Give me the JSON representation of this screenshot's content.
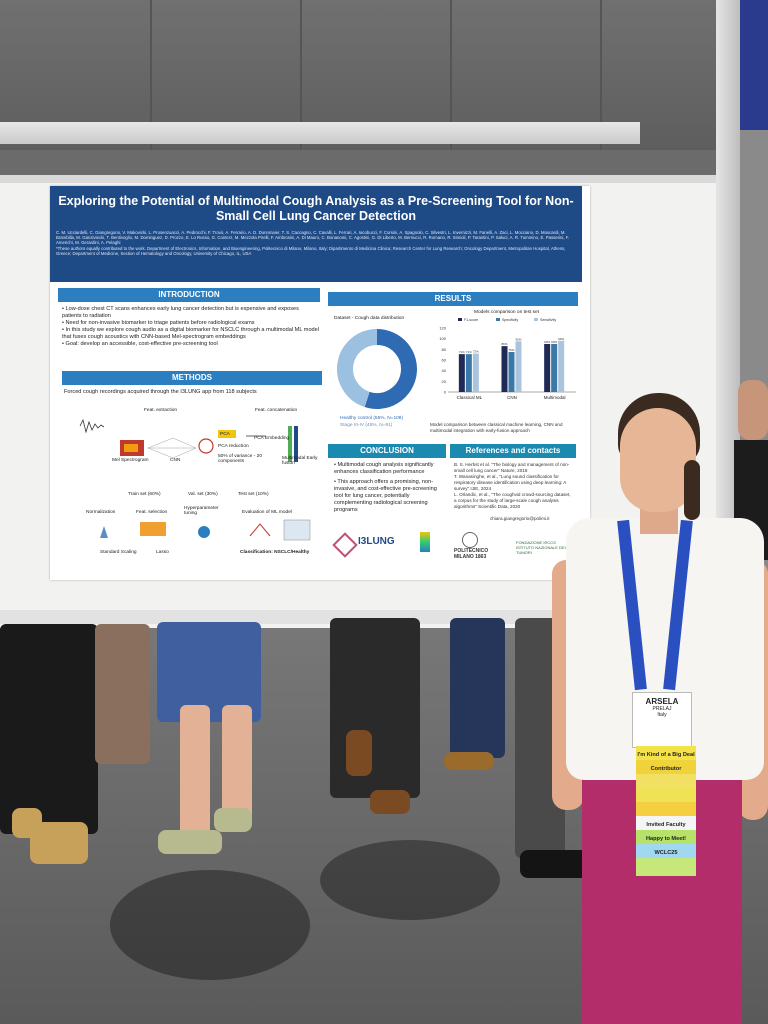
{
  "poster": {
    "title": "Exploring the Potential of Multimodal Cough Analysis as a Pre-Screening Tool for Non-Small Cell Lung Cancer Detection",
    "authors": "C. M. Ucciardelli, C. Giangregorio, V. Makovicki, L. Prosenzuacci, A. Pedrocchi, F. Trovò, A. Ferrario, A. D. Dunnmaier, T. S. Caccagno, C. Cavalli, L. Ferrari, A. Iacobucci, F. Corsini, A. Spagnolo, C. Silvestri, L. Invernizzi, M. Fanelli, A. Zaci, L. Mocciano, D. Moscardi, M. Brambilla, M. Ganziviecki, T. Bentivoglio, M. Dominguez, D. Prozzo, E. Lo Russo, G. Conterz, M. Mezzola Pirelli, F. Ambrosini, A. Di Mauro, C. Bonanomi, C. Agostini, G. Di Liberto, M. Bernucci, R. Romano, R. Simioli, P. Tarantini, P. Saluci, A. R. Tummino, E. Passerini, F. Americhi, M. Gerardini, A. Pelaghi",
    "notes": "*These authors equally contributed to the work. Department of Electronics, Information, and Bioengineering, Politecnico di Milano, Milano, Italy; Dipartimento di Medicina Clinica; Research Center for Lung Research; Oncology Department, Metropolitan Hospital, Athens, Greece; Department of Medicine, Section of Hematology and Oncology, University of Chicago, IL, USA",
    "intro": {
      "heading": "INTRODUCTION",
      "bullets": [
        "Low-dose chest CT scans enhances early lung cancer detection but is expensive and exposes patients to radiation",
        "Need for non-invasive biomarker to triage patients before radiological exams",
        "In this study we explore cough audio as a digital biomarker for NSCLC through a multimodal ML model that fuses cough acoustics with CNN-based Mel-spectrogram embeddings",
        "Goal: develop an accessible, cost-effective pre-screening tool"
      ]
    },
    "methods": {
      "heading": "METHODS",
      "lead": "Forced cough recordings acquired through the I3LUNG app from 118 subjects",
      "feat_extraction": "Feat. extraction",
      "feat_concat": "Feat. concatenation",
      "mel": "Mel Spectrogram",
      "cnn": "CNN",
      "pca": "PCA",
      "pca_reduction": "PCA reduction",
      "variance": "50% of variance - 20 components",
      "pca_embedding": "PCA Embedding",
      "multimodal": "Multimodal Early fusion",
      "train": "Train set (60%)",
      "val": "Val. set (30%)",
      "test": "Test set (10%)",
      "normalization": "Normalization",
      "feat_selection": "Feat. selection",
      "hyper": "Hyperparameter tuning",
      "evaluation": "Evaluation of ML model",
      "standard": "Standard Scaling",
      "lasso": "Lasso",
      "classification": "Classification: NSCLC/Healthy"
    },
    "results": {
      "heading": "RESULTS",
      "dataset_label": "Dataset - Cough data distribution",
      "model_label": "Models comparison on test set",
      "legend": [
        "F1-score",
        "Specificity",
        "Sensitivity"
      ],
      "donut_legend": [
        "Healthy control (55%, N=108)",
        "Stage III-IV (45%, N=91)"
      ],
      "caption": "Model comparison between classical machine learning, CNN and multimodal integration with early-fusion approach"
    },
    "conclusion": {
      "heading": "CONCLUSION",
      "bullets": [
        "Multimodal cough analysis significantly enhances classification performance",
        "This approach offers a promising, non-invasive, and cost-effective pre-screening tool for lung cancer, potentially complementing radiological screening programs"
      ]
    },
    "references": {
      "heading": "References and contacts",
      "items": [
        "B. S. Herbst et al. \"The biology and management of non-small cell lung cancer\" Nature, 2018",
        "T. Wanasinghe, et al., \"Lung sound classification for respiratory disease identification using deep learning: A survey\" IJIE, 2024",
        "L. Orlandic, et al., \"The coughvid crowd-sourcing dataset, a corpus for the study of large-scale cough analysis algorithms\" Scientific Data, 2020"
      ],
      "email": "chiara.giangregorio@polimi.it"
    },
    "logos": [
      "I3LUNG",
      "POLITECNICO MILANO 1863",
      "FONDAZIONE IRCCS ISTITUTO NAZIONALE DEI TUMORI"
    ]
  },
  "chart_data": {
    "type": "bar",
    "title": "Models comparison on test set",
    "categories": [
      "Classical ML",
      "CNN",
      "Multimodal"
    ],
    "series": [
      {
        "name": "F1-score",
        "values": [
          71,
          86,
          90
        ]
      },
      {
        "name": "Specificity",
        "values": [
          71,
          75,
          90
        ]
      },
      {
        "name": "Sensitivity",
        "values": [
          72,
          95,
          96
        ]
      }
    ],
    "ylim": [
      0,
      120
    ],
    "yticks": [
      0,
      20,
      40,
      60,
      80,
      100,
      120
    ],
    "colors": [
      "#1f2a56",
      "#3a78a8",
      "#a9c4dc"
    ]
  },
  "donut": {
    "slices": [
      {
        "label": "Healthy control",
        "value": 55,
        "color": "#2f6bb3"
      },
      {
        "label": "Stage III-IV",
        "value": 45,
        "color": "#9cc0e0"
      }
    ]
  },
  "badge": {
    "name": "ARSELA",
    "sub": "PRELAJ",
    "country": "Italy"
  },
  "ribbons": [
    {
      "text": "I'm Kind of a Big Deal",
      "color": "#f3e24a"
    },
    {
      "text": "Contributor",
      "color": "#f0d23a"
    },
    {
      "text": "",
      "color": "#f2e064"
    },
    {
      "text": "",
      "color": "#efe255"
    },
    {
      "text": "",
      "color": "#f4d040"
    },
    {
      "text": "Invited Faculty",
      "color": "#f5f5f5"
    },
    {
      "text": "Happy to Meet!",
      "color": "#b6e26a"
    },
    {
      "text": "WCLC25",
      "color": "#9fd8f0"
    },
    {
      "text": "",
      "color": "#c6e77a"
    }
  ]
}
